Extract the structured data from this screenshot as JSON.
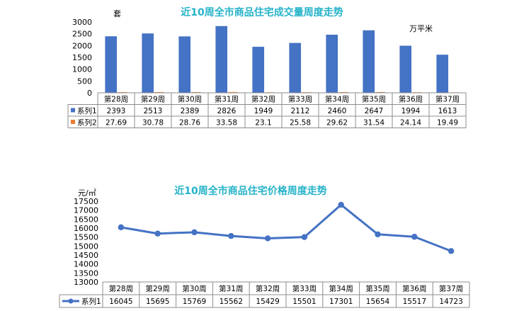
{
  "chart_data": [
    {
      "type": "bar",
      "title": "近10周全市商品住宅成交量周度走势",
      "left_unit": "套",
      "right_unit": "万平米",
      "categories": [
        "第28周",
        "第29周",
        "第30周",
        "第31周",
        "第32周",
        "第33周",
        "第34周",
        "第35周",
        "第36周",
        "第37周"
      ],
      "series": [
        {
          "name": "系列1",
          "color": "#4472c4",
          "values": [
            2393,
            2513,
            2389,
            2826,
            1949,
            2112,
            2460,
            2647,
            1994,
            1613
          ]
        },
        {
          "name": "系列2",
          "color": "#ed7d31",
          "values": [
            27.69,
            30.78,
            28.76,
            33.58,
            23.1,
            25.58,
            29.62,
            31.54,
            24.14,
            19.49
          ]
        }
      ],
      "yticks": [
        0,
        500,
        1000,
        1500,
        2000,
        2500,
        3000
      ],
      "ylim": [
        0,
        3000
      ],
      "grid": false,
      "legend": "data-table"
    },
    {
      "type": "line",
      "title": "近10周全市商品住宅价格周度走势",
      "left_unit": "元/㎡",
      "categories": [
        "第28周",
        "第29周",
        "第30周",
        "第31周",
        "第32周",
        "第33周",
        "第34周",
        "第35周",
        "第36周",
        "第37周"
      ],
      "series": [
        {
          "name": "系列1",
          "color": "#4472c4",
          "values": [
            16045,
            15695,
            15769,
            15562,
            15429,
            15501,
            17301,
            15654,
            15517,
            14723
          ]
        }
      ],
      "yticks": [
        13000,
        13500,
        14000,
        14500,
        15000,
        15500,
        16000,
        16500,
        17000,
        17500
      ],
      "ylim": [
        13000,
        17500
      ],
      "grid": false,
      "legend": "data-table"
    }
  ]
}
